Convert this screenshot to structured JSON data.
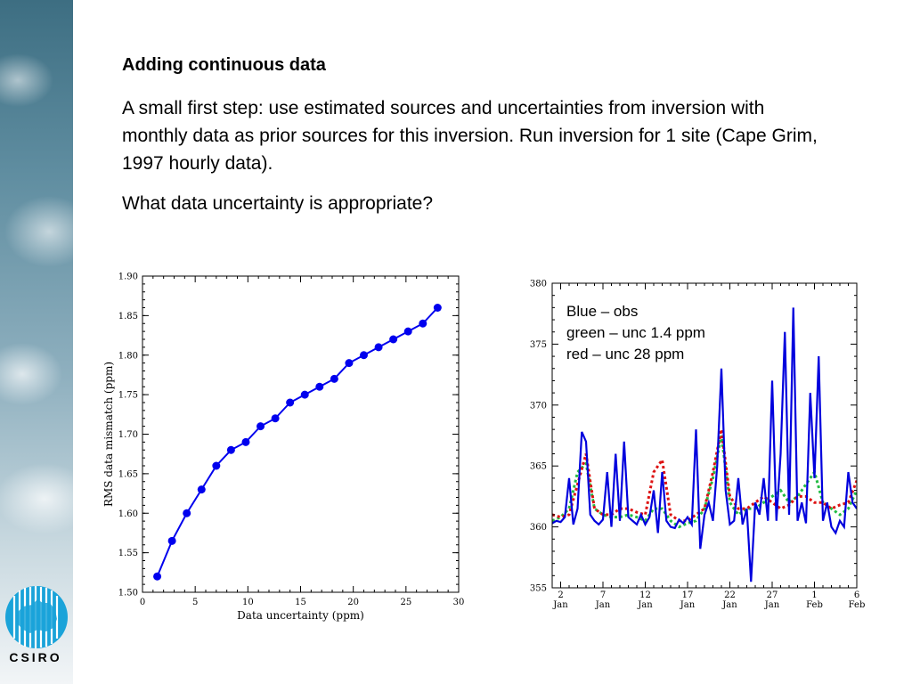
{
  "slide": {
    "heading": "Adding continuous data",
    "paragraph1": "A small first step: use estimated sources and uncertainties from inversion with monthly data as prior sources for this inversion.  Run inversion for 1 site (Cape Grim, 1997 hourly data).",
    "paragraph2": "What data uncertainty is appropriate?",
    "logo_text": "CSIRO"
  },
  "chart_data": [
    {
      "type": "line",
      "xlabel": "Data uncertainty (ppm)",
      "ylabel": "RMS data mismatch (ppm)",
      "xlim": [
        0,
        30
      ],
      "ylim": [
        1.5,
        1.9
      ],
      "x_ticks": [
        "0",
        "5",
        "10",
        "15",
        "20",
        "25",
        "30"
      ],
      "y_ticks": [
        "1.50",
        "1.55",
        "1.60",
        "1.65",
        "1.70",
        "1.75",
        "1.80",
        "1.85",
        "1.90"
      ],
      "color": "#0000ee",
      "grid": false,
      "x": [
        1.4,
        2.8,
        4.2,
        5.6,
        7.0,
        8.4,
        9.8,
        11.2,
        12.6,
        14.0,
        15.4,
        16.8,
        18.2,
        19.6,
        21.0,
        22.4,
        23.8,
        25.2,
        26.6,
        28.0
      ],
      "y": [
        1.52,
        1.565,
        1.6,
        1.63,
        1.66,
        1.68,
        1.69,
        1.71,
        1.72,
        1.74,
        1.75,
        1.76,
        1.77,
        1.79,
        1.8,
        1.81,
        1.82,
        1.83,
        1.84,
        1.86
      ]
    },
    {
      "type": "line",
      "ylim": [
        355,
        380
      ],
      "xlim": [
        0,
        36
      ],
      "y_ticks": [
        "355",
        "360",
        "365",
        "370",
        "375",
        "380"
      ],
      "x_ticks": [
        {
          "top": "2",
          "bottom": "Jan"
        },
        {
          "top": "7",
          "bottom": "Jan"
        },
        {
          "top": "12",
          "bottom": "Jan"
        },
        {
          "top": "17",
          "bottom": "Jan"
        },
        {
          "top": "22",
          "bottom": "Jan"
        },
        {
          "top": "27",
          "bottom": "Jan"
        },
        {
          "top": "1",
          "bottom": "Feb"
        },
        {
          "top": "6",
          "bottom": "Feb"
        }
      ],
      "legend": [
        "Blue – obs",
        "green – unc 1.4 ppm",
        "red – unc 28 ppm"
      ],
      "legend_position": "top-left",
      "series": [
        {
          "color": "#0000dd",
          "style": "solid",
          "x": [
            0,
            0.5,
            1,
            1.5,
            2,
            2.5,
            3,
            3.5,
            4,
            4.5,
            5,
            5.5,
            6,
            6.5,
            7,
            7.5,
            8,
            8.5,
            9,
            9.5,
            10,
            10.5,
            11,
            11.5,
            12,
            12.5,
            13,
            13.5,
            14,
            14.5,
            15,
            15.5,
            16,
            16.5,
            17,
            17.5,
            18,
            18.5,
            19,
            19.5,
            20,
            20.5,
            21,
            21.5,
            22,
            22.5,
            23,
            23.5,
            24,
            24.5,
            25,
            25.5,
            26,
            26.5,
            27,
            27.5,
            28,
            28.5,
            29,
            29.5,
            30,
            30.5,
            31,
            31.5,
            32,
            32.5,
            33,
            33.5,
            34,
            34.5,
            35,
            35.5,
            36
          ],
          "y": [
            360.3,
            360.5,
            360.4,
            360.8,
            364,
            360.2,
            361.5,
            367.8,
            367,
            361,
            360.5,
            360.2,
            360.6,
            364.5,
            360,
            366,
            360.5,
            367,
            360.8,
            360.5,
            360.2,
            361,
            360.2,
            360.8,
            363,
            359.5,
            364.5,
            360.5,
            360,
            359.9,
            360.6,
            360.3,
            360.8,
            360.2,
            368,
            358.2,
            361,
            362,
            360.5,
            365,
            373,
            363,
            360.2,
            360.5,
            364,
            360.2,
            361.5,
            355.5,
            362,
            361,
            364,
            360.5,
            372,
            360.5,
            366,
            376,
            361,
            378,
            360.5,
            362,
            360.3,
            371,
            364,
            374,
            360.5,
            362,
            360,
            359.5,
            360.5,
            360,
            364.5,
            362,
            361.5
          ]
        },
        {
          "color": "#22bb44",
          "style": "dotted",
          "x": [
            0,
            1,
            2,
            3,
            4,
            5,
            6,
            7,
            8,
            9,
            10,
            11,
            12,
            13,
            14,
            15,
            16,
            17,
            18,
            19,
            20,
            21,
            22,
            23,
            24,
            25,
            26,
            27,
            28,
            29,
            30,
            31,
            32,
            33,
            34,
            35,
            36
          ],
          "y": [
            360.5,
            360.8,
            361.5,
            364.5,
            365.2,
            361.5,
            361,
            360.8,
            360.8,
            361,
            360.8,
            360.5,
            361.5,
            361.5,
            360.5,
            360,
            360.3,
            360.5,
            361.5,
            364,
            367.5,
            362,
            361,
            361.5,
            361.5,
            362,
            362.5,
            363,
            362,
            362.5,
            363.5,
            364.5,
            362,
            361.5,
            361,
            361.5,
            363
          ]
        },
        {
          "color": "#dd1111",
          "style": "dotted",
          "x": [
            0,
            1,
            2,
            3,
            4,
            5,
            6,
            7,
            8,
            9,
            10,
            11,
            12,
            13,
            14,
            15,
            16,
            17,
            18,
            19,
            20,
            21,
            22,
            23,
            24,
            25,
            26,
            27,
            28,
            29,
            30,
            31,
            32,
            33,
            34,
            35,
            36
          ],
          "y": [
            361,
            360.8,
            361,
            363.5,
            366,
            361.5,
            361,
            361,
            361.5,
            361.5,
            361.2,
            361,
            364.5,
            365.5,
            361,
            360.5,
            360.5,
            361,
            361.5,
            364.5,
            368,
            362.5,
            361.5,
            361.5,
            362,
            362.5,
            362,
            361.5,
            361.8,
            362.5,
            362.5,
            362,
            362,
            361.5,
            361.8,
            362,
            363.8
          ]
        }
      ]
    }
  ]
}
